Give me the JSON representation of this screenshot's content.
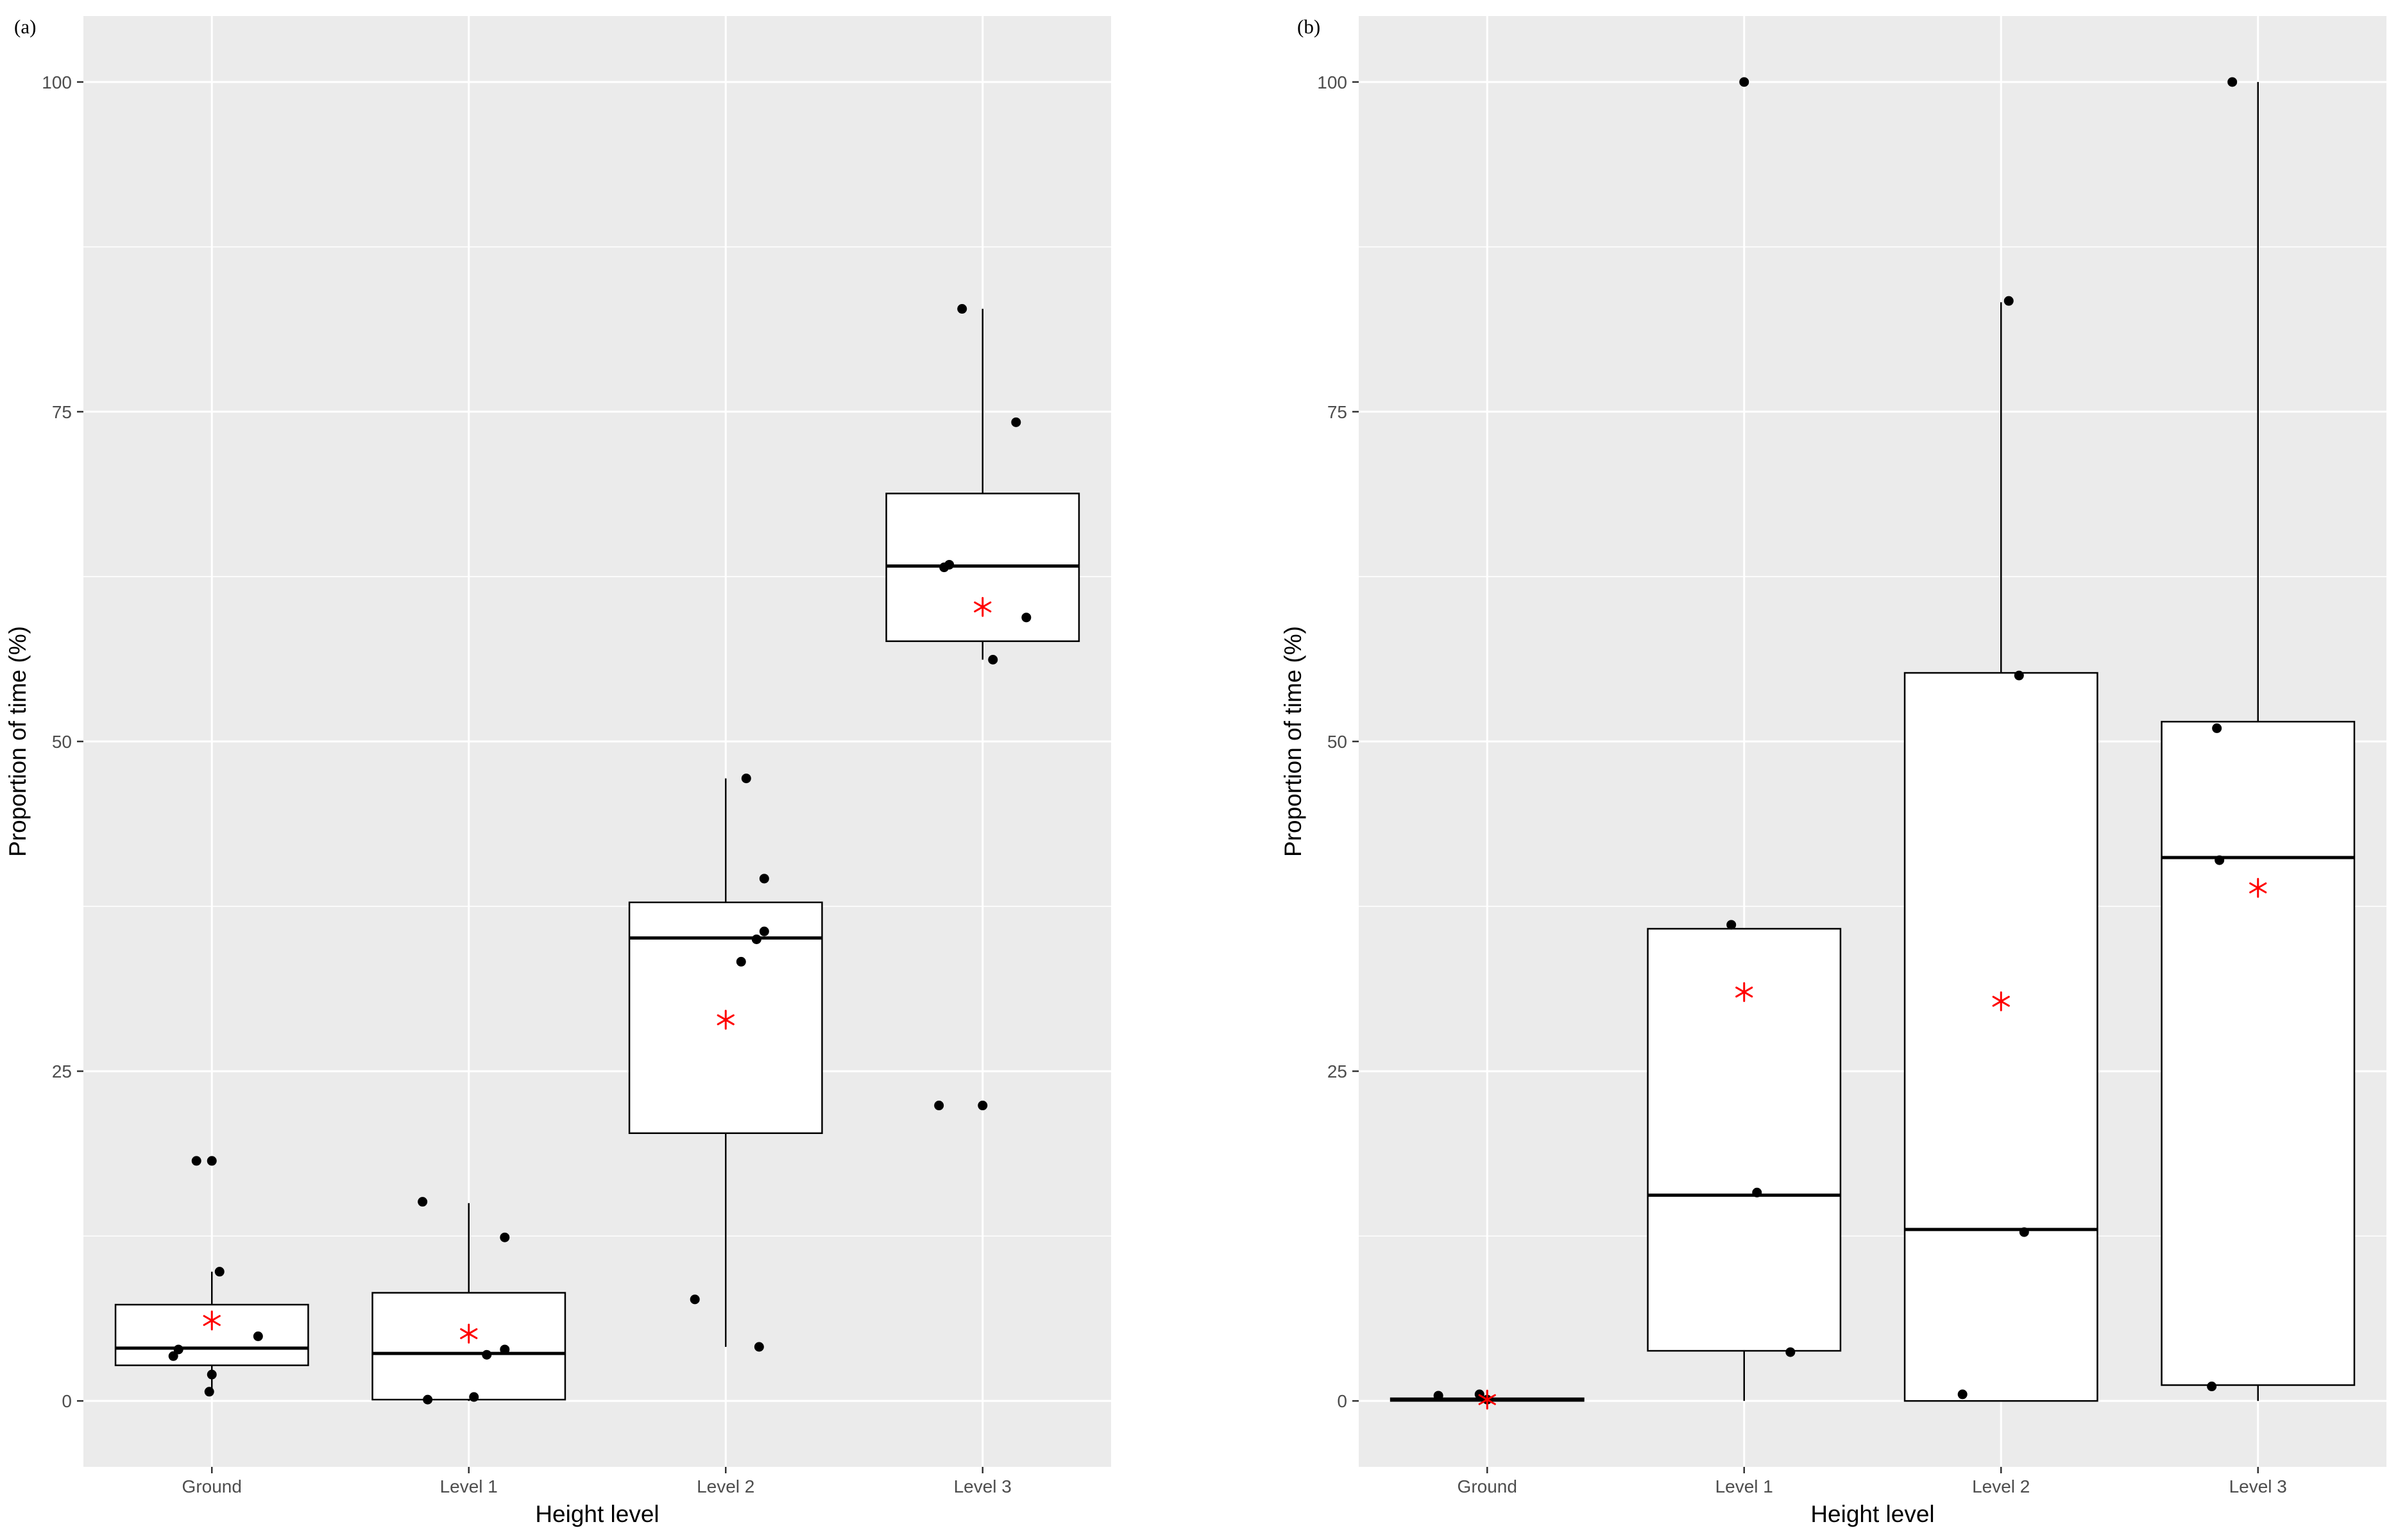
{
  "figure": {
    "background": "#ffffff",
    "panel_background": "#ebebeb",
    "grid_color": "#ffffff",
    "box_fill": "#ffffff",
    "box_stroke": "#000000",
    "point_color": "#000000",
    "mean_color": "#ff0000"
  },
  "chart_data": [
    {
      "type": "box",
      "panel_label": "(a)",
      "title": "",
      "xlabel": "Height level",
      "ylabel": "Proportion of time (%)",
      "categories": [
        "Ground",
        "Level 1",
        "Level 2",
        "Level 3"
      ],
      "ylim": [
        -5,
        105
      ],
      "y_ticks": [
        0,
        25,
        50,
        75,
        100
      ],
      "y_tick_labels": [
        "0",
        "25",
        "50",
        "75",
        "100"
      ],
      "grid": true,
      "boxes": [
        {
          "category": "Ground",
          "whisker_low": 0.7,
          "q1": 2.7,
          "median": 4.0,
          "q3": 7.3,
          "whisker_high": 9.8,
          "mean": 6.1
        },
        {
          "category": "Level 1",
          "whisker_low": 0.0,
          "q1": 0.1,
          "median": 3.6,
          "q3": 8.2,
          "whisker_high": 15.0,
          "mean": 5.1
        },
        {
          "category": "Level 2",
          "whisker_low": 4.1,
          "q1": 20.3,
          "median": 35.1,
          "q3": 37.8,
          "whisker_high": 47.2,
          "mean": 28.9
        },
        {
          "category": "Level 3",
          "whisker_low": 56.2,
          "q1": 57.6,
          "median": 63.3,
          "q3": 68.8,
          "whisker_high": 82.8,
          "mean": 60.2
        }
      ],
      "points": [
        {
          "category": "Ground",
          "jitter": -0.06,
          "y": 18.2
        },
        {
          "category": "Ground",
          "jitter": 0.0,
          "y": 18.2
        },
        {
          "category": "Ground",
          "jitter": 0.03,
          "y": 9.8
        },
        {
          "category": "Ground",
          "jitter": 0.18,
          "y": 4.9
        },
        {
          "category": "Ground",
          "jitter": -0.13,
          "y": 3.9
        },
        {
          "category": "Ground",
          "jitter": -0.15,
          "y": 3.4
        },
        {
          "category": "Ground",
          "jitter": 0.0,
          "y": 2.0
        },
        {
          "category": "Ground",
          "jitter": -0.01,
          "y": 0.7
        },
        {
          "category": "Level 1",
          "jitter": -0.18,
          "y": 15.1
        },
        {
          "category": "Level 1",
          "jitter": 0.14,
          "y": 12.4
        },
        {
          "category": "Level 1",
          "jitter": 0.14,
          "y": 3.9
        },
        {
          "category": "Level 1",
          "jitter": 0.07,
          "y": 3.5
        },
        {
          "category": "Level 1",
          "jitter": 0.02,
          "y": 0.3
        },
        {
          "category": "Level 1",
          "jitter": -0.16,
          "y": 0.1
        },
        {
          "category": "Level 2",
          "jitter": 0.08,
          "y": 47.2
        },
        {
          "category": "Level 2",
          "jitter": 0.15,
          "y": 39.6
        },
        {
          "category": "Level 2",
          "jitter": 0.15,
          "y": 35.6
        },
        {
          "category": "Level 2",
          "jitter": 0.12,
          "y": 35.0
        },
        {
          "category": "Level 2",
          "jitter": 0.06,
          "y": 33.3
        },
        {
          "category": "Level 2",
          "jitter": -0.12,
          "y": 7.7
        },
        {
          "category": "Level 2",
          "jitter": 0.13,
          "y": 4.1
        },
        {
          "category": "Level 3",
          "jitter": -0.08,
          "y": 82.8
        },
        {
          "category": "Level 3",
          "jitter": 0.13,
          "y": 74.2
        },
        {
          "category": "Level 3",
          "jitter": -0.15,
          "y": 63.2
        },
        {
          "category": "Level 3",
          "jitter": -0.13,
          "y": 63.4
        },
        {
          "category": "Level 3",
          "jitter": 0.17,
          "y": 59.4
        },
        {
          "category": "Level 3",
          "jitter": 0.04,
          "y": 56.2
        },
        {
          "category": "Level 3",
          "jitter": -0.17,
          "y": 22.4
        },
        {
          "category": "Level 3",
          "jitter": 0.0,
          "y": 22.4
        }
      ]
    },
    {
      "type": "box",
      "panel_label": "(b)",
      "title": "",
      "xlabel": "Height level",
      "ylabel": "Proportion of time (%)",
      "categories": [
        "Ground",
        "Level 1",
        "Level 2",
        "Level 3"
      ],
      "ylim": [
        -5,
        105
      ],
      "y_ticks": [
        0,
        25,
        50,
        75,
        100
      ],
      "y_tick_labels": [
        "0",
        "25",
        "50",
        "75",
        "100"
      ],
      "grid": true,
      "boxes": [
        {
          "category": "Ground",
          "whisker_low": 0.0,
          "q1": 0.0,
          "median": 0.1,
          "q3": 0.2,
          "whisker_high": 0.4,
          "mean": 0.1
        },
        {
          "category": "Level 1",
          "whisker_low": 0.0,
          "q1": 3.8,
          "median": 15.6,
          "q3": 35.8,
          "whisker_high": 35.8,
          "mean": 31.0
        },
        {
          "category": "Level 2",
          "whisker_low": 0.0,
          "q1": 0.0,
          "median": 13.0,
          "q3": 55.2,
          "whisker_high": 83.3,
          "mean": 30.3
        },
        {
          "category": "Level 3",
          "whisker_low": 0.0,
          "q1": 1.2,
          "median": 41.2,
          "q3": 51.5,
          "whisker_high": 100.0,
          "mean": 38.9
        }
      ],
      "points": [
        {
          "category": "Ground",
          "jitter": -0.19,
          "y": 0.4
        },
        {
          "category": "Ground",
          "jitter": -0.03,
          "y": 0.5
        },
        {
          "category": "Ground",
          "jitter": 0.0,
          "y": 0.1
        },
        {
          "category": "Level 1",
          "jitter": 0.0,
          "y": 100.0
        },
        {
          "category": "Level 1",
          "jitter": -0.05,
          "y": 36.1
        },
        {
          "category": "Level 1",
          "jitter": 0.05,
          "y": 15.8
        },
        {
          "category": "Level 1",
          "jitter": 0.18,
          "y": 3.7
        },
        {
          "category": "Level 2",
          "jitter": 0.03,
          "y": 83.4
        },
        {
          "category": "Level 2",
          "jitter": 0.07,
          "y": 55.0
        },
        {
          "category": "Level 2",
          "jitter": 0.09,
          "y": 12.8
        },
        {
          "category": "Level 2",
          "jitter": -0.15,
          "y": 0.5
        },
        {
          "category": "Level 3",
          "jitter": -0.1,
          "y": 100.0
        },
        {
          "category": "Level 3",
          "jitter": -0.16,
          "y": 51.0
        },
        {
          "category": "Level 3",
          "jitter": -0.15,
          "y": 41.0
        },
        {
          "category": "Level 3",
          "jitter": -0.18,
          "y": 1.1
        }
      ]
    }
  ]
}
